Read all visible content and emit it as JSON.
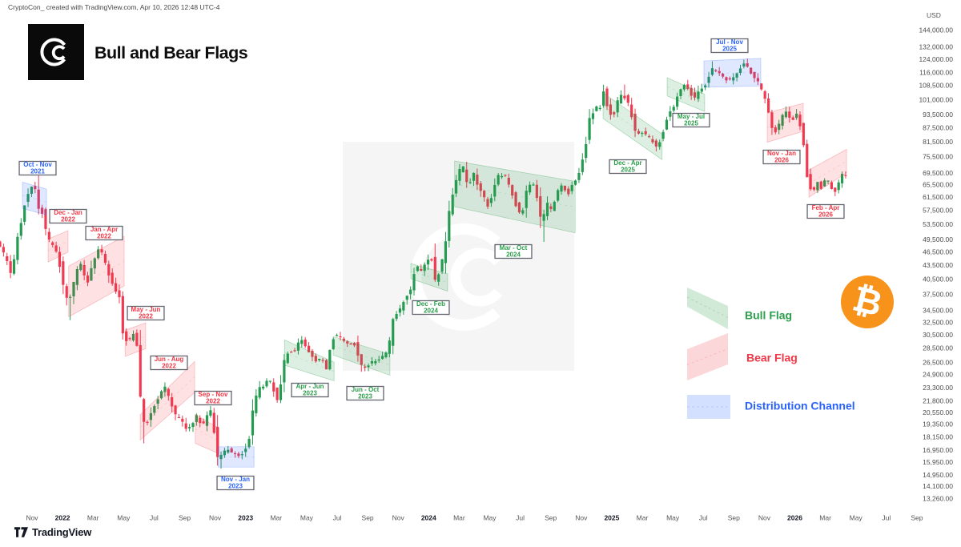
{
  "header": {
    "credit": "CryptoCon_ created with TradingView.com, Apr 10, 2026 12:48 UTC-4",
    "title": "Bull and Bear Flags"
  },
  "price_axis": {
    "currency": "USD",
    "ticks": [
      144000,
      132000,
      124000,
      116000,
      108500,
      101000,
      93500,
      87500,
      81500,
      75500,
      69500,
      65500,
      61500,
      57500,
      53500,
      49500,
      46500,
      43500,
      40500,
      37500,
      34500,
      32500,
      30500,
      28500,
      26500,
      24900,
      23300,
      21800,
      20550,
      19350,
      18150,
      16950,
      15950,
      14950,
      14100,
      13260
    ]
  },
  "time_axis": {
    "labels": [
      "Nov",
      "2022",
      "Mar",
      "May",
      "Jul",
      "Sep",
      "Nov",
      "2023",
      "Mar",
      "May",
      "Jul",
      "Sep",
      "Nov",
      "2024",
      "Mar",
      "May",
      "Jul",
      "Sep",
      "Nov",
      "2025",
      "Mar",
      "May",
      "Jul",
      "Sep",
      "Nov",
      "2026",
      "Mar",
      "May",
      "Jul",
      "Sep"
    ]
  },
  "legend": [
    {
      "label": "Bull Flag",
      "type": "bull",
      "color": "#2b9e4b"
    },
    {
      "label": "Bear Flag",
      "type": "bear",
      "color": "#f23645"
    },
    {
      "label": "Distribution Channel",
      "type": "distribution",
      "color": "#2962ff"
    }
  ],
  "footer": {
    "brand": "TradingView"
  },
  "chart_data": {
    "type": "candlestick",
    "title": "Bull and Bear Flags",
    "ylabel": "USD",
    "scale": "log",
    "x_start": "2021-09",
    "x_end": "2026-09",
    "colors": {
      "up": "#259b51",
      "down": "#ef3a52",
      "bull_flag": "#2b9e4b",
      "bear_flag": "#f23645",
      "distribution": "#2962ff",
      "bitcoin": "#f7931a"
    },
    "price_path_monthly": [
      [
        -2.1,
        48800
      ],
      [
        -1.8,
        47100
      ],
      [
        -1.45,
        45000
      ],
      [
        -1.15,
        41500
      ],
      [
        -0.85,
        47500
      ],
      [
        -0.5,
        54000
      ],
      [
        -0.2,
        61000
      ],
      [
        0.1,
        63500
      ],
      [
        0.35,
        67500
      ],
      [
        0.6,
        58500
      ],
      [
        0.95,
        56800
      ],
      [
        1.15,
        50500
      ],
      [
        1.5,
        48500
      ],
      [
        1.8,
        46500
      ],
      [
        2.1,
        43000
      ],
      [
        2.45,
        36500
      ],
      [
        2.75,
        37500
      ],
      [
        3.1,
        41500
      ],
      [
        3.45,
        44200
      ],
      [
        3.8,
        39000
      ],
      [
        4.1,
        42500
      ],
      [
        4.55,
        47200
      ],
      [
        4.9,
        45800
      ],
      [
        5.3,
        41000
      ],
      [
        5.65,
        38600
      ],
      [
        6.0,
        36500
      ],
      [
        6.2,
        30500
      ],
      [
        6.55,
        29500
      ],
      [
        6.9,
        30800
      ],
      [
        7.15,
        28500
      ],
      [
        7.4,
        20000
      ],
      [
        7.7,
        19200
      ],
      [
        8.0,
        20500
      ],
      [
        8.35,
        21800
      ],
      [
        8.7,
        23000
      ],
      [
        9.05,
        23600
      ],
      [
        9.3,
        21500
      ],
      [
        9.7,
        20000
      ],
      [
        10.0,
        19800
      ],
      [
        10.35,
        18800
      ],
      [
        10.7,
        19500
      ],
      [
        11.05,
        20300
      ],
      [
        11.4,
        19200
      ],
      [
        11.75,
        20600
      ],
      [
        12.05,
        21000
      ],
      [
        12.3,
        16200
      ],
      [
        12.65,
        16600
      ],
      [
        13.0,
        17100
      ],
      [
        13.4,
        16800
      ],
      [
        13.8,
        16600
      ],
      [
        14.1,
        16800
      ],
      [
        14.45,
        18000
      ],
      [
        14.75,
        21000
      ],
      [
        15.05,
        23100
      ],
      [
        15.4,
        23500
      ],
      [
        15.75,
        24500
      ],
      [
        16.05,
        23200
      ],
      [
        16.35,
        21500
      ],
      [
        16.7,
        26500
      ],
      [
        17.05,
        28300
      ],
      [
        17.4,
        28000
      ],
      [
        17.8,
        30000
      ],
      [
        18.1,
        29300
      ],
      [
        18.5,
        27500
      ],
      [
        18.85,
        26800
      ],
      [
        19.2,
        27200
      ],
      [
        19.55,
        25700
      ],
      [
        19.9,
        30300
      ],
      [
        20.2,
        30600
      ],
      [
        20.6,
        29800
      ],
      [
        21.0,
        29200
      ],
      [
        21.4,
        29100
      ],
      [
        21.75,
        26100
      ],
      [
        22.1,
        26000
      ],
      [
        22.5,
        26600
      ],
      [
        22.9,
        26900
      ],
      [
        23.25,
        27500
      ],
      [
        23.6,
        28500
      ],
      [
        23.95,
        34000
      ],
      [
        24.3,
        34600
      ],
      [
        24.65,
        36800
      ],
      [
        25.0,
        37800
      ],
      [
        25.35,
        43800
      ],
      [
        25.7,
        42000
      ],
      [
        26.05,
        44200
      ],
      [
        26.35,
        46300
      ],
      [
        26.65,
        40000
      ],
      [
        27.0,
        42600
      ],
      [
        27.4,
        51500
      ],
      [
        27.75,
        62500
      ],
      [
        28.1,
        68300
      ],
      [
        28.45,
        73000
      ],
      [
        28.8,
        64500
      ],
      [
        29.15,
        70000
      ],
      [
        29.5,
        64800
      ],
      [
        29.85,
        62000
      ],
      [
        30.2,
        58200
      ],
      [
        30.55,
        66200
      ],
      [
        30.9,
        69500
      ],
      [
        31.25,
        68500
      ],
      [
        31.6,
        64500
      ],
      [
        31.95,
        59500
      ],
      [
        32.3,
        55500
      ],
      [
        32.65,
        63500
      ],
      [
        33.0,
        67500
      ],
      [
        33.3,
        62000
      ],
      [
        33.6,
        53500
      ],
      [
        33.95,
        59500
      ],
      [
        34.3,
        57800
      ],
      [
        34.65,
        63000
      ],
      [
        35.0,
        65500
      ],
      [
        35.35,
        62500
      ],
      [
        35.7,
        66000
      ],
      [
        36.05,
        69500
      ],
      [
        36.4,
        76000
      ],
      [
        36.75,
        91000
      ],
      [
        37.1,
        97500
      ],
      [
        37.45,
        97000
      ],
      [
        37.7,
        106000
      ],
      [
        38.05,
        94500
      ],
      [
        38.4,
        94500
      ],
      [
        38.75,
        104500
      ],
      [
        39.1,
        102500
      ],
      [
        39.45,
        96500
      ],
      [
        39.8,
        84500
      ],
      [
        40.15,
        86000
      ],
      [
        40.5,
        84000
      ],
      [
        40.85,
        82600
      ],
      [
        41.2,
        79000
      ],
      [
        41.55,
        85000
      ],
      [
        41.9,
        94500
      ],
      [
        42.25,
        97000
      ],
      [
        42.6,
        103500
      ],
      [
        42.95,
        108800
      ],
      [
        43.3,
        106000
      ],
      [
        43.65,
        101500
      ],
      [
        44.0,
        107500
      ],
      [
        44.35,
        108800
      ],
      [
        44.7,
        118000
      ],
      [
        45.05,
        117500
      ],
      [
        45.4,
        113500
      ],
      [
        45.75,
        112300
      ],
      [
        46.1,
        112000
      ],
      [
        46.45,
        115500
      ],
      [
        46.8,
        122500
      ],
      [
        47.15,
        119000
      ],
      [
        47.5,
        115000
      ],
      [
        47.85,
        110500
      ],
      [
        48.1,
        106000
      ],
      [
        48.35,
        98000
      ],
      [
        48.7,
        88500
      ],
      [
        49.0,
        85500
      ],
      [
        49.3,
        91500
      ],
      [
        49.65,
        95500
      ],
      [
        50.0,
        90500
      ],
      [
        50.3,
        94500
      ],
      [
        50.6,
        89000
      ],
      [
        50.85,
        77000
      ],
      [
        51.1,
        67000
      ],
      [
        51.35,
        63000
      ],
      [
        51.7,
        66500
      ],
      [
        52.0,
        64500
      ],
      [
        52.3,
        68000
      ],
      [
        52.6,
        65000
      ],
      [
        52.9,
        63500
      ],
      [
        53.15,
        66500
      ],
      [
        53.35,
        69300
      ]
    ],
    "wick_extremes": [
      {
        "m": 0.35,
        "high": 69000
      },
      {
        "m": 2.45,
        "low": 32950
      },
      {
        "m": 7.4,
        "low": 17600
      },
      {
        "m": 12.3,
        "low": 15480
      },
      {
        "m": 26.35,
        "high": 48700
      },
      {
        "m": 28.45,
        "high": 73800
      },
      {
        "m": 33.6,
        "low": 49100
      },
      {
        "m": 37.7,
        "high": 108300
      },
      {
        "m": 38.75,
        "high": 109300
      },
      {
        "m": 42.95,
        "high": 111970
      },
      {
        "m": 44.7,
        "high": 123100
      },
      {
        "m": 46.8,
        "high": 124500
      }
    ],
    "flags": [
      {
        "line1": "Oct - Nov",
        "line2": "2021",
        "type": "distribution",
        "m": [
          -0.63,
          0.95
        ],
        "top": [
          66500,
          64200
        ],
        "bot": [
          58200,
          56300
        ],
        "lp": [
          47,
          210
        ]
      },
      {
        "line1": "Dec - Jan",
        "line2": "2022",
        "type": "bear",
        "m": [
          1.05,
          2.36
        ],
        "top": [
          49800,
          52000
        ],
        "bot": [
          44300,
          46600
        ],
        "lp": [
          85,
          270
        ]
      },
      {
        "line1": "Jan - Apr",
        "line2": "2022",
        "type": "bear",
        "m": [
          2.4,
          6.04
        ],
        "top": [
          43400,
          50500
        ],
        "bot": [
          33500,
          39200
        ],
        "lp": [
          130,
          291
        ]
      },
      {
        "line1": "May - Jun",
        "line2": "2022",
        "type": "bear",
        "m": [
          6.1,
          7.45
        ],
        "top": [
          31300,
          32500
        ],
        "bot": [
          27400,
          28500
        ],
        "lp": [
          182,
          391
        ]
      },
      {
        "line1": "Jun - Aug",
        "line2": "2022",
        "type": "bear",
        "m": [
          7.09,
          10.66
        ],
        "top": [
          20350,
          26700
        ],
        "bot": [
          17900,
          22800
        ],
        "lp": [
          211,
          453
        ]
      },
      {
        "line1": "Sep - Nov",
        "line2": "2022",
        "type": "bear",
        "m": [
          10.7,
          12.25
        ],
        "top": [
          20400,
          19000
        ],
        "bot": [
          17600,
          16700
        ],
        "lp": [
          266,
          497
        ]
      },
      {
        "line1": "Nov - Jan",
        "line2": "2023",
        "type": "distribution",
        "m": [
          12.2,
          14.55
        ],
        "top": [
          17300,
          17300
        ],
        "bot": [
          15600,
          15600
        ],
        "lp": [
          294,
          603
        ]
      },
      {
        "line1": "Apr - Jun",
        "line2": "2023",
        "type": "bull",
        "m": [
          16.55,
          19.8
        ],
        "top": [
          29800,
          26600
        ],
        "bot": [
          26200,
          24200
        ],
        "lp": [
          387,
          487
        ]
      },
      {
        "line1": "Jun - Oct",
        "line2": "2023",
        "type": "bull",
        "m": [
          19.74,
          23.46
        ],
        "top": [
          30300,
          27700
        ],
        "bot": [
          27600,
          24900
        ],
        "lp": [
          456,
          491
        ]
      },
      {
        "line1": "Dec - Feb",
        "line2": "2024",
        "type": "bull",
        "m": [
          24.83,
          27.24
        ],
        "top": [
          43950,
          41700
        ],
        "bot": [
          40700,
          38200
        ],
        "lp": [
          538,
          384
        ]
      },
      {
        "line1": "Mar - Oct",
        "line2": "2024",
        "type": "bull",
        "m": [
          27.7,
          35.6
        ],
        "top": [
          74100,
          66800
        ],
        "bot": [
          58700,
          51400
        ],
        "lp": [
          641,
          314
        ]
      },
      {
        "line1": "Dec - Apr",
        "line2": "2025",
        "type": "bull",
        "m": [
          37.43,
          41.3
        ],
        "top": [
          104800,
          85000
        ],
        "bot": [
          92000,
          74600
        ],
        "lp": [
          784,
          208
        ]
      },
      {
        "line1": "May - Jul",
        "line2": "2025",
        "type": "bull",
        "m": [
          41.63,
          44.09
        ],
        "top": [
          113200,
          104000
        ],
        "bot": [
          103200,
          95300
        ],
        "lp": [
          863,
          150
        ]
      },
      {
        "line1": "Jul - Nov",
        "line2": "2025",
        "type": "distribution",
        "m": [
          44.04,
          47.77
        ],
        "top": [
          123300,
          124900
        ],
        "bot": [
          107800,
          108600
        ],
        "lp": [
          911,
          57
        ]
      },
      {
        "line1": "Nov - Jan",
        "line2": "2026",
        "type": "bear",
        "m": [
          48.19,
          50.55
        ],
        "top": [
          94700,
          99400
        ],
        "bot": [
          81500,
          86200
        ],
        "lp": [
          976,
          196
        ]
      },
      {
        "line1": "Feb - Apr",
        "line2": "2026",
        "type": "bear",
        "m": [
          50.92,
          53.39
        ],
        "top": [
          70800,
          78600
        ],
        "bot": [
          61600,
          69700
        ],
        "lp": [
          1031,
          264
        ]
      }
    ]
  }
}
